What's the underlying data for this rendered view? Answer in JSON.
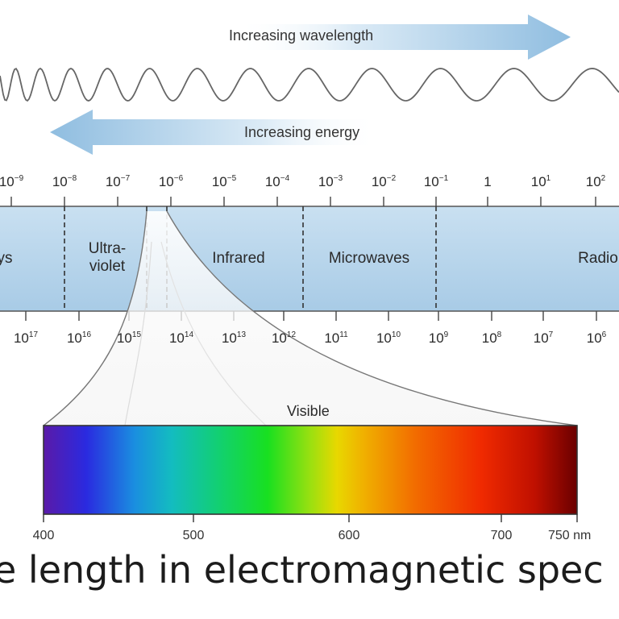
{
  "arrows": {
    "wavelength_label": "Increasing wavelength",
    "energy_label": "Increasing energy",
    "color": "#a9cbe6"
  },
  "wavelength_ticks": [
    {
      "base": "10",
      "exp": "−9"
    },
    {
      "base": "10",
      "exp": "−8"
    },
    {
      "base": "10",
      "exp": "−7"
    },
    {
      "base": "10",
      "exp": "−6"
    },
    {
      "base": "10",
      "exp": "−5"
    },
    {
      "base": "10",
      "exp": "−4"
    },
    {
      "base": "10",
      "exp": "−3"
    },
    {
      "base": "10",
      "exp": "−2"
    },
    {
      "base": "10",
      "exp": "−1"
    },
    {
      "base": "1",
      "exp": ""
    },
    {
      "base": "10",
      "exp": "1"
    },
    {
      "base": "10",
      "exp": "2"
    }
  ],
  "frequency_ticks": [
    {
      "base": "10",
      "exp": "17"
    },
    {
      "base": "10",
      "exp": "16"
    },
    {
      "base": "10",
      "exp": "15"
    },
    {
      "base": "10",
      "exp": "14"
    },
    {
      "base": "10",
      "exp": "13"
    },
    {
      "base": "10",
      "exp": "12"
    },
    {
      "base": "10",
      "exp": "11"
    },
    {
      "base": "10",
      "exp": "10"
    },
    {
      "base": "10",
      "exp": "9"
    },
    {
      "base": "10",
      "exp": "8"
    },
    {
      "base": "10",
      "exp": "7"
    },
    {
      "base": "10",
      "exp": "6"
    }
  ],
  "regions": {
    "xrays": "ys",
    "ultraviolet_line1": "Ultra-",
    "ultraviolet_line2": "violet",
    "infrared": "Infrared",
    "microwaves": "Microwaves",
    "radio": "Radio"
  },
  "band_color": "#b9d6ec",
  "visible": {
    "label": "Visible",
    "ticks": [
      "400",
      "500",
      "600",
      "700",
      "750 nm"
    ]
  },
  "caption": "e length in electromagnetic spec"
}
